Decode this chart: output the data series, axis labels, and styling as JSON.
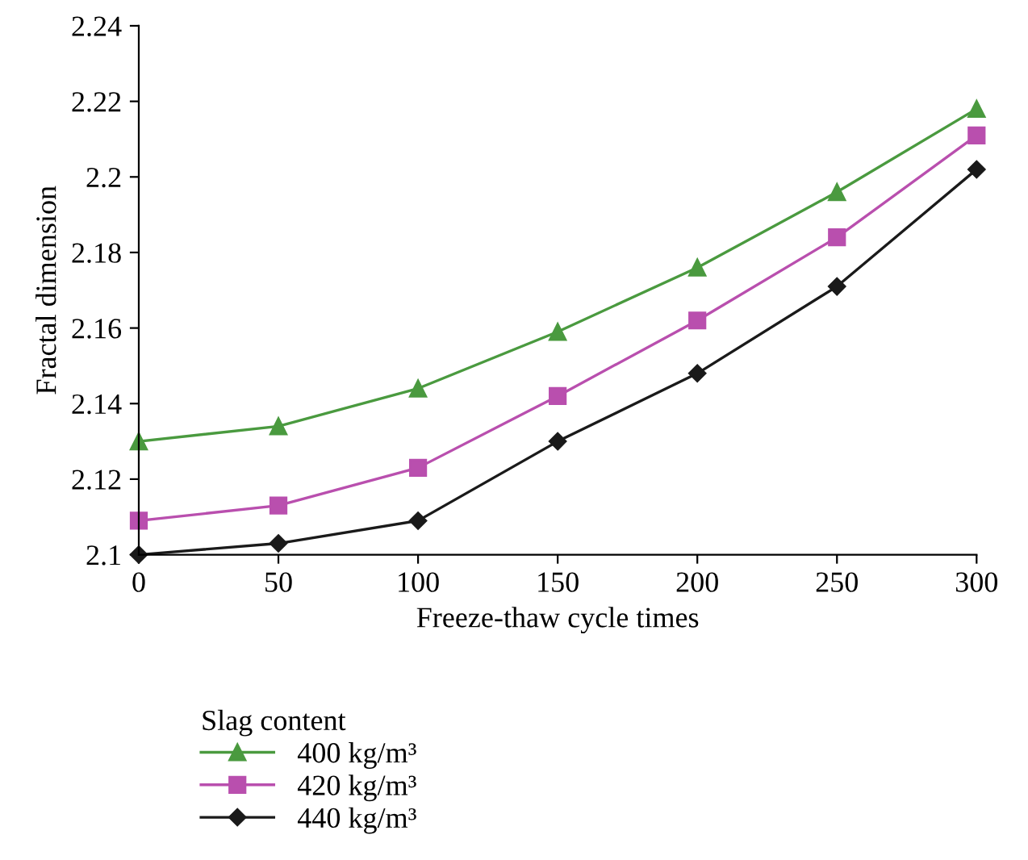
{
  "chart_data": {
    "type": "line",
    "xlabel": "Freeze-thaw cycle times",
    "ylabel": "Fractal dimension",
    "legend_title": "Slag content",
    "legend": "bottom left",
    "x": [
      0,
      50,
      100,
      150,
      200,
      250,
      300
    ],
    "series": [
      {
        "name": "400 kg/m³",
        "color": "#4a9a3f",
        "marker": "triangle",
        "values": [
          2.13,
          2.134,
          2.144,
          2.159,
          2.176,
          2.196,
          2.218
        ]
      },
      {
        "name": "420 kg/m³",
        "color": "#b94fae",
        "marker": "square",
        "values": [
          2.109,
          2.113,
          2.123,
          2.142,
          2.162,
          2.184,
          2.211
        ]
      },
      {
        "name": "440 kg/m³",
        "color": "#1a1a1a",
        "marker": "diamond",
        "values": [
          2.1,
          2.103,
          2.109,
          2.13,
          2.148,
          2.171,
          2.202
        ]
      }
    ],
    "xlim": [
      0,
      300
    ],
    "xticks": [
      0,
      50,
      100,
      150,
      200,
      250,
      300
    ],
    "ylim": [
      2.1,
      2.24
    ],
    "yticks": [
      {
        "value": 2.1,
        "label": "2.1"
      },
      2.12,
      2.14,
      2.16,
      2.18,
      {
        "value": 2.2,
        "label": "2.2"
      },
      2.22,
      2.24
    ],
    "grid": false,
    "line_style": "solid"
  }
}
